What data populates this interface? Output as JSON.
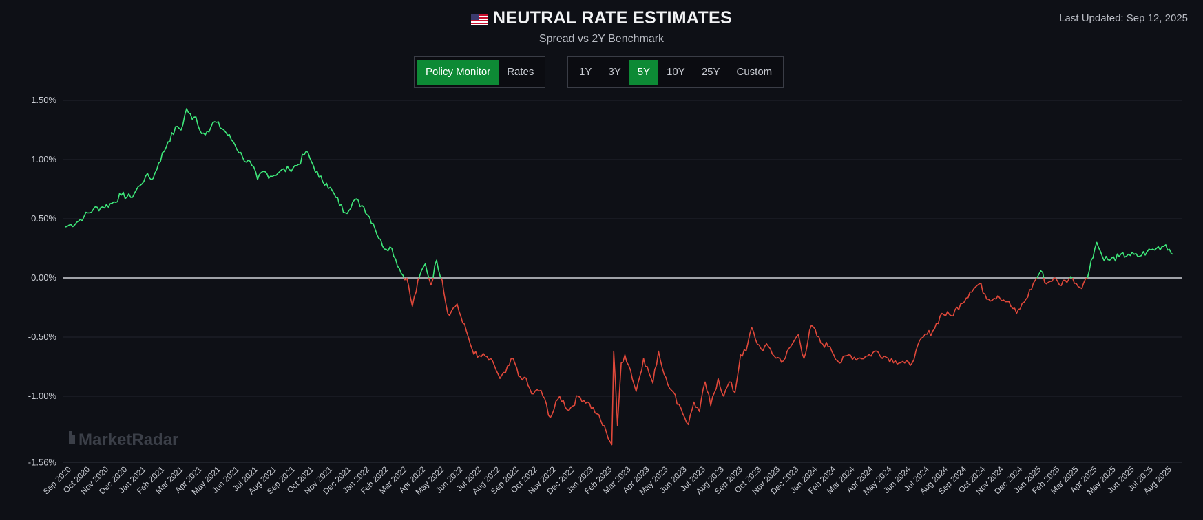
{
  "header": {
    "title": "NEUTRAL RATE ESTIMATES",
    "subtitle": "Spread vs 2Y Benchmark",
    "last_updated": "Last Updated: Sep 12, 2025",
    "flag_icon": "us-flag-icon"
  },
  "view_toggle": {
    "options": [
      "Policy Monitor",
      "Rates"
    ],
    "selected": "Policy Monitor"
  },
  "range_toggle": {
    "options": [
      "1Y",
      "3Y",
      "5Y",
      "10Y",
      "25Y",
      "Custom"
    ],
    "selected": "5Y"
  },
  "watermark": "MarketRadar",
  "colors": {
    "background": "#0e1016",
    "positive": "#3ee87a",
    "negative": "#e0483a",
    "zero_line": "#d0d3d8",
    "grid": "#22252d",
    "active": "#0d8a35"
  },
  "chart_data": {
    "type": "line",
    "title": "NEUTRAL RATE ESTIMATES",
    "subtitle": "Spread vs 2Y Benchmark",
    "xlabel": "",
    "ylabel": "",
    "ylim": [
      -1.56,
      1.56
    ],
    "y_ticks": [
      1.5,
      1.0,
      0.5,
      0.0,
      -0.5,
      -1.0,
      -1.56
    ],
    "y_tick_labels": [
      "1.50%",
      "1.00%",
      "0.50%",
      "0.00%",
      "-0.50%",
      "-1.00%",
      "-1.56%"
    ],
    "x_tick_labels": [
      "Sep 2020",
      "Oct 2020",
      "Nov 2020",
      "Dec 2020",
      "Jan 2021",
      "Feb 2021",
      "Mar 2021",
      "Apr 2021",
      "May 2021",
      "Jun 2021",
      "Jul 2021",
      "Aug 2021",
      "Sep 2021",
      "Oct 2021",
      "Nov 2021",
      "Dec 2021",
      "Jan 2022",
      "Feb 2022",
      "Mar 2022",
      "Apr 2022",
      "May 2022",
      "Jun 2022",
      "Jul 2022",
      "Aug 2022",
      "Sep 2022",
      "Oct 2022",
      "Nov 2022",
      "Dec 2022",
      "Jan 2023",
      "Feb 2023",
      "Mar 2023",
      "Apr 2023",
      "May 2023",
      "Jun 2023",
      "Jul 2023",
      "Aug 2023",
      "Sep 2023",
      "Oct 2023",
      "Nov 2023",
      "Dec 2023",
      "Jan 2024",
      "Feb 2024",
      "Mar 2024",
      "Apr 2024",
      "May 2024",
      "Jun 2024",
      "Jul 2024",
      "Aug 2024",
      "Sep 2024",
      "Oct 2024",
      "Nov 2024",
      "Dec 2024",
      "Jan 2025",
      "Feb 2025",
      "Mar 2025",
      "Apr 2025",
      "May 2025",
      "Jun 2025",
      "Jul 2025",
      "Aug 2025"
    ],
    "grid": true,
    "zero_line": true,
    "series": [
      {
        "name": "Spread vs 2Y Benchmark (%)",
        "x_months": [
          0,
          0.3,
          0.6,
          1.0,
          1.5,
          2.0,
          2.5,
          3.0,
          3.5,
          4.0,
          4.3,
          4.7,
          5.0,
          5.5,
          6.0,
          6.2,
          6.5,
          6.8,
          7.0,
          7.3,
          7.6,
          8.0,
          8.5,
          9.0,
          9.5,
          10.0,
          10.3,
          10.6,
          11.0,
          11.5,
          12.0,
          12.5,
          12.9,
          13.2,
          13.6,
          14.0,
          14.5,
          15.0,
          15.5,
          16.0,
          16.5,
          17.0,
          17.5,
          18.0,
          18.3,
          18.6,
          19.0,
          19.3,
          19.6,
          19.9,
          20.2,
          20.5,
          20.7,
          21.0,
          21.3,
          21.5,
          21.8,
          22.1,
          22.5,
          23.0,
          23.3,
          23.6,
          24.0,
          24.3,
          24.6,
          25.0,
          25.5,
          26.0,
          26.5,
          27.0,
          27.5,
          28.0,
          28.5,
          29.0,
          29.3,
          29.4,
          29.6,
          29.8,
          30.0,
          30.3,
          30.6,
          31.0,
          31.5,
          31.8,
          32.0,
          32.5,
          33.0,
          33.4,
          33.7,
          34.0,
          34.3,
          34.6,
          35.0,
          35.3,
          35.6,
          35.9,
          36.2,
          36.5,
          36.8,
          37.0,
          37.3,
          37.7,
          38.0,
          38.5,
          39.0,
          39.3,
          39.6,
          40.0,
          40.5,
          41.0,
          41.5,
          42.0,
          42.5,
          43.0,
          43.5,
          44.0,
          44.5,
          45.0,
          45.3,
          45.6,
          46.0,
          46.5,
          47.0,
          47.5,
          48.0,
          48.5,
          49.0,
          49.5,
          50.0,
          50.5,
          51.0,
          51.5,
          52.0,
          52.3,
          52.6,
          53.0,
          53.3,
          53.6,
          54.0,
          54.4,
          54.8,
          55.0,
          55.3,
          55.6,
          56.0,
          56.5,
          57.0,
          57.5,
          58.0,
          58.5,
          59.0,
          59.4
        ],
        "values": [
          0.43,
          0.45,
          0.47,
          0.52,
          0.58,
          0.6,
          0.63,
          0.7,
          0.68,
          0.78,
          0.86,
          0.84,
          0.97,
          1.15,
          1.28,
          1.25,
          1.43,
          1.34,
          1.36,
          1.22,
          1.24,
          1.32,
          1.25,
          1.15,
          1.02,
          0.95,
          0.83,
          0.9,
          0.86,
          0.9,
          0.92,
          0.96,
          1.07,
          0.98,
          0.85,
          0.8,
          0.68,
          0.55,
          0.66,
          0.6,
          0.46,
          0.27,
          0.25,
          0.04,
          0.0,
          -0.24,
          0.02,
          0.12,
          -0.06,
          0.15,
          -0.02,
          -0.3,
          -0.28,
          -0.22,
          -0.38,
          -0.45,
          -0.6,
          -0.67,
          -0.66,
          -0.74,
          -0.85,
          -0.8,
          -0.68,
          -0.83,
          -0.84,
          -0.98,
          -0.95,
          -1.18,
          -1.0,
          -1.12,
          -1.0,
          -1.05,
          -1.15,
          -1.3,
          -1.41,
          -0.62,
          -1.25,
          -0.72,
          -0.65,
          -0.78,
          -0.96,
          -0.68,
          -0.89,
          -0.62,
          -0.76,
          -0.95,
          -1.1,
          -1.24,
          -1.05,
          -1.13,
          -0.88,
          -1.08,
          -0.85,
          -1.0,
          -0.88,
          -0.97,
          -0.65,
          -0.62,
          -0.42,
          -0.52,
          -0.6,
          -0.58,
          -0.66,
          -0.7,
          -0.55,
          -0.48,
          -0.68,
          -0.4,
          -0.55,
          -0.58,
          -0.72,
          -0.65,
          -0.68,
          -0.66,
          -0.62,
          -0.67,
          -0.7,
          -0.72,
          -0.74,
          -0.62,
          -0.5,
          -0.45,
          -0.3,
          -0.32,
          -0.22,
          -0.12,
          -0.05,
          -0.18,
          -0.15,
          -0.2,
          -0.3,
          -0.18,
          -0.02,
          0.06,
          -0.05,
          0.0,
          -0.06,
          -0.02,
          0.0,
          -0.08,
          0.0,
          0.15,
          0.3,
          0.18,
          0.15,
          0.18,
          0.2,
          0.18,
          0.22,
          0.25,
          0.28,
          0.2
        ]
      }
    ]
  }
}
